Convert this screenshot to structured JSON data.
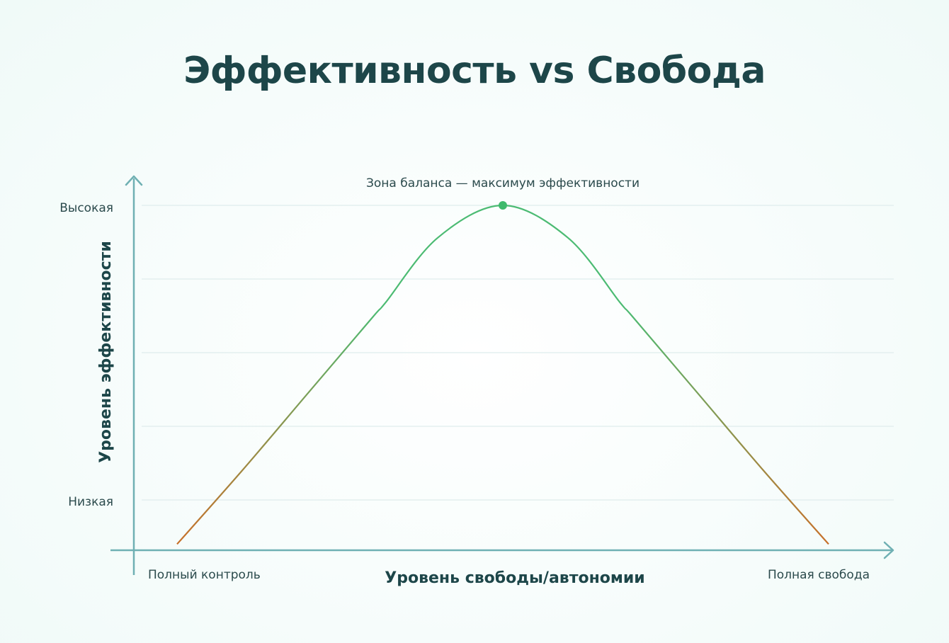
{
  "colors": {
    "title": "#1d4649",
    "axis": "#6fb0b3",
    "grid": "#e3efef",
    "curve_top": "#4cbb73",
    "curve_bottom": "#c8702a",
    "peak": "#3fba6c"
  },
  "chart_data": {
    "type": "line",
    "title": "Эффективность vs Свобода",
    "xlabel": "Уровень свободы/автономии",
    "ylabel": "Уровень эффективности",
    "x_tick_labels": {
      "left": "Полный контроль",
      "right": "Полная свобода"
    },
    "y_tick_labels": {
      "top": "Высокая",
      "bottom": "Низкая"
    },
    "xlim": [
      0,
      100
    ],
    "ylim": [
      0,
      100
    ],
    "y_ticks": [
      0,
      25,
      50,
      75,
      100
    ],
    "grid": true,
    "series": [
      {
        "x": [
          0,
          10,
          20,
          30,
          32,
          40,
          50,
          60,
          68,
          70,
          80,
          90,
          100
        ],
        "y": [
          -15,
          10,
          36,
          62,
          67,
          89,
          100,
          89,
          67,
          62,
          36,
          10,
          -15
        ]
      }
    ],
    "annotations": [
      {
        "text": "Зона баланса — максимум эффективности",
        "x": 50,
        "y": 100
      }
    ]
  }
}
